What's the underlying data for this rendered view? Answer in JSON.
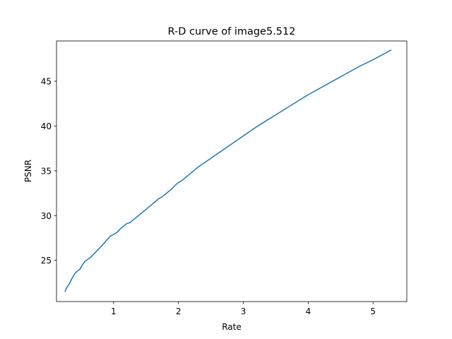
{
  "chart_data": {
    "type": "line",
    "title": "R-D curve of image5.512",
    "xlabel": "Rate",
    "ylabel": "PSNR",
    "xlim": [
      0.12,
      5.52
    ],
    "ylim": [
      20.4,
      49.5
    ],
    "xticks": [
      1,
      2,
      3,
      4,
      5
    ],
    "yticks": [
      25,
      30,
      35,
      40,
      45
    ],
    "grid": false,
    "series": [
      {
        "name": "R-D curve",
        "color": "#1f77b4",
        "x": [
          0.25,
          0.28,
          0.32,
          0.36,
          0.4,
          0.44,
          0.48,
          0.52,
          0.56,
          0.6,
          0.64,
          0.68,
          0.72,
          0.76,
          0.8,
          0.85,
          0.9,
          0.95,
          1.0,
          1.05,
          1.1,
          1.15,
          1.2,
          1.25,
          1.3,
          1.35,
          1.4,
          1.45,
          1.5,
          1.55,
          1.6,
          1.65,
          1.7,
          1.75,
          1.8,
          1.85,
          1.9,
          1.95,
          2.0,
          2.05,
          2.1,
          2.15,
          2.2,
          2.3,
          2.4,
          2.5,
          2.6,
          2.7,
          2.8,
          2.9,
          3.0,
          3.1,
          3.2,
          3.4,
          3.6,
          3.8,
          4.0,
          4.2,
          4.4,
          4.6,
          4.8,
          5.0,
          5.28
        ],
        "y": [
          21.5,
          22.0,
          22.4,
          23.0,
          23.5,
          23.8,
          24.0,
          24.5,
          24.9,
          25.1,
          25.3,
          25.6,
          25.9,
          26.2,
          26.5,
          26.9,
          27.3,
          27.7,
          27.9,
          28.1,
          28.5,
          28.8,
          29.1,
          29.2,
          29.5,
          29.8,
          30.1,
          30.4,
          30.7,
          31.0,
          31.3,
          31.6,
          31.9,
          32.1,
          32.4,
          32.7,
          33.0,
          33.4,
          33.7,
          33.9,
          34.2,
          34.5,
          34.8,
          35.4,
          35.9,
          36.4,
          36.9,
          37.4,
          37.9,
          38.4,
          38.9,
          39.4,
          39.9,
          40.8,
          41.7,
          42.6,
          43.5,
          44.3,
          45.1,
          45.9,
          46.7,
          47.4,
          48.5
        ]
      }
    ]
  }
}
